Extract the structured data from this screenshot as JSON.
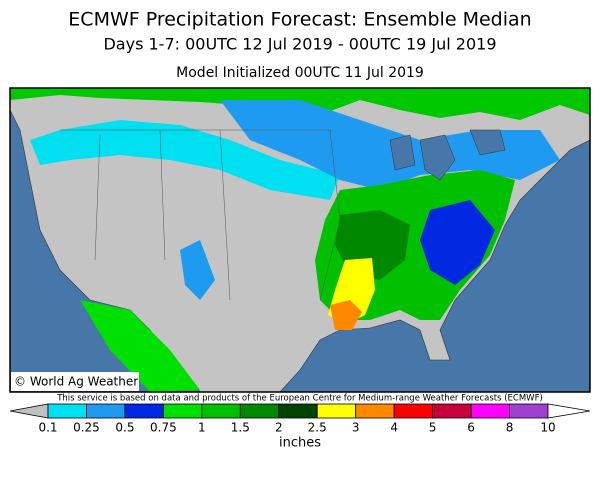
{
  "header": {
    "title": "ECMWF Precipitation Forecast: Ensemble Median",
    "subtitle": "Days 1-7: 00UTC 12 Jul 2019 - 00UTC 19 Jul 2019",
    "initialized": "Model Initialized 00UTC 11 Jul 2019"
  },
  "map": {
    "copyright": "© World Ag Weather"
  },
  "note": "This service is based on data and products of the European Centre for Medium-range Weather Forecasts (ECMWF)",
  "colorbar": {
    "label": "inches",
    "ticks": [
      0.1,
      0.25,
      0.5,
      0.75,
      1,
      1.5,
      2,
      2.5,
      3,
      4,
      5,
      6,
      8,
      10
    ],
    "colors": [
      "#c0c0c0",
      "#00e0f0",
      "#1e9bf0",
      "#0028e0",
      "#00e000",
      "#00c000",
      "#008800",
      "#004400",
      "#ffff00",
      "#ff8800",
      "#ff0000",
      "#c8003c",
      "#ff00ff",
      "#a040d0",
      "#ffffff"
    ]
  }
}
